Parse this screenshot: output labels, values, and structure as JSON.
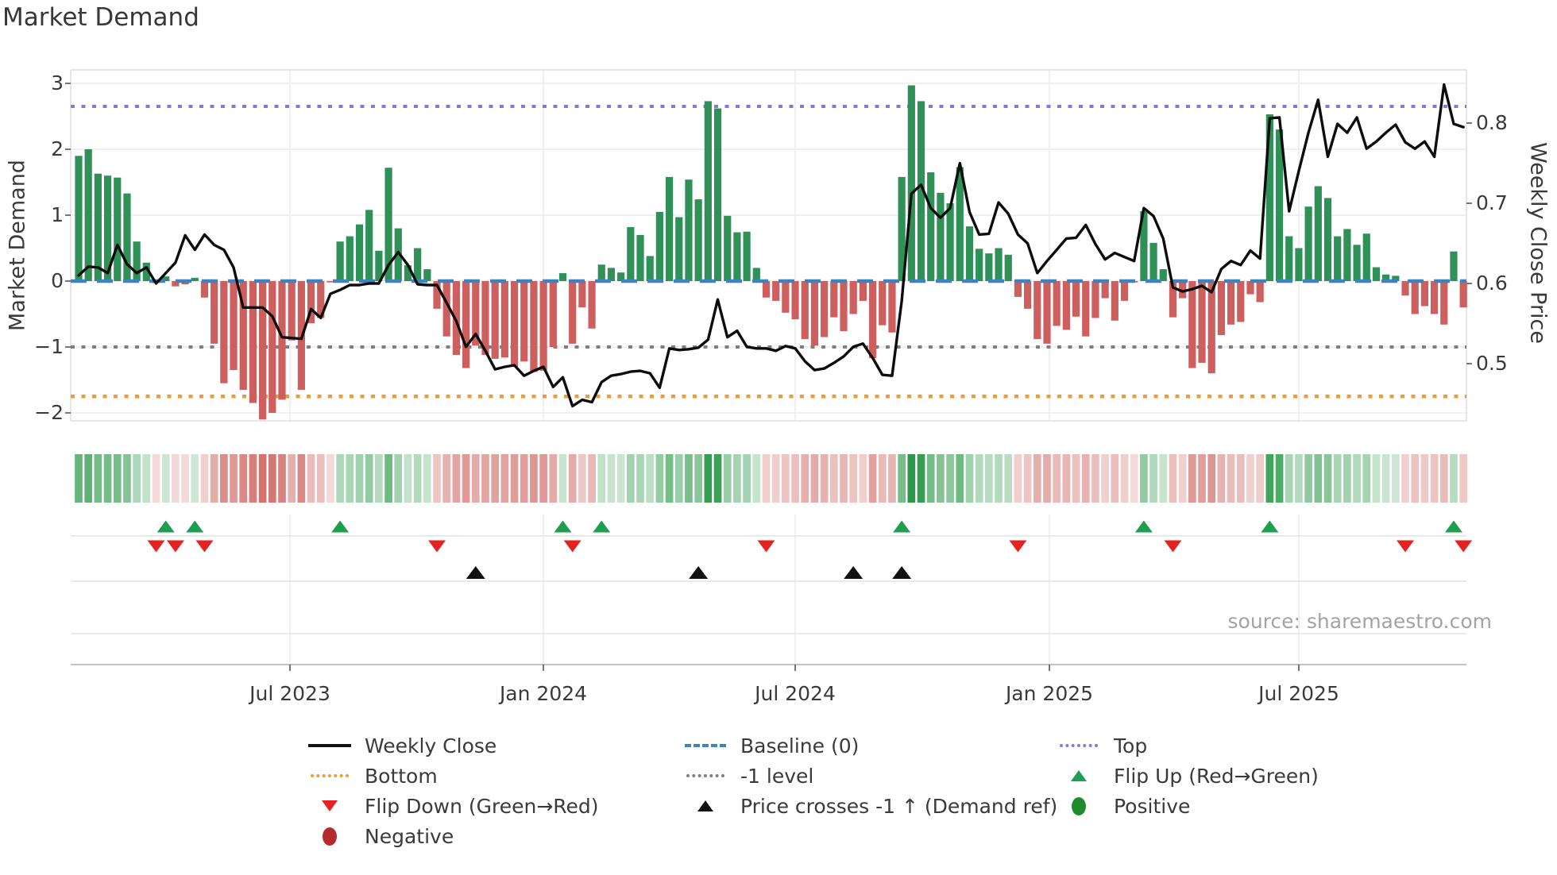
{
  "title": "Market Demand",
  "source_text": "source: sharemaestro.com",
  "axes": {
    "left_label": "Market Demand",
    "right_label": "Weekly Close Price",
    "left_tick_labels": [
      "3",
      "2",
      "1",
      "0",
      "−1",
      "−2"
    ],
    "right_tick_labels": [
      "0.8",
      "0.7",
      "0.6",
      "0.5"
    ],
    "x_tick_labels": [
      "Jul 2023",
      "Jan 2024",
      "Jul 2024",
      "Jan 2025",
      "Jul 2025"
    ]
  },
  "legend": {
    "columns": [
      {
        "items": [
          {
            "icon": "black-line",
            "label": "Weekly Close"
          },
          {
            "icon": "orange-dotted-line",
            "label": "Bottom"
          },
          {
            "icon": "red-down-triangle",
            "label": "Flip Down (Green→Red)"
          },
          {
            "icon": "dark-red-circle",
            "label": "Negative"
          }
        ]
      },
      {
        "items": [
          {
            "icon": "blue-dashed-line",
            "label": "Baseline (0)"
          },
          {
            "icon": "gray-dotted-line",
            "label": "-1 level"
          },
          {
            "icon": "black-up-triangle",
            "label": "Price crosses -1 ↑ (Demand ref)"
          }
        ]
      },
      {
        "items": [
          {
            "icon": "purple-dotted-line",
            "label": "Top"
          },
          {
            "icon": "green-up-triangle",
            "label": "Flip Up (Red→Green)"
          },
          {
            "icon": "green-circle",
            "label": "Positive"
          }
        ]
      }
    ]
  },
  "colors": {
    "bar_positive": "#2f9058",
    "bar_negative": "#cd5f5f",
    "price_line": "#0d0d0d",
    "baseline": "#3d84bf",
    "top_line": "#8478dd",
    "bottom_line": "#ef9b30",
    "neg1_line": "#7f7f7f",
    "flip_up_marker": "#1e9e4f",
    "flip_down_marker": "#e42320",
    "price_cross_marker": "#111111",
    "positive_dot": "#1e8c2e",
    "negative_dot": "#b32b2b",
    "grid": "#ececec",
    "spine": "#dedede"
  },
  "chart_data": {
    "type": "bar+line",
    "title": "Market Demand",
    "x_unit": "week",
    "x_tick_labels": [
      "Jul 2023",
      "Jan 2024",
      "Jul 2024",
      "Jan 2025",
      "Jul 2025"
    ],
    "left_axis": {
      "label": "Market Demand",
      "ticks": [
        3,
        2,
        1,
        0,
        -1,
        -2
      ],
      "ylim": [
        -2.4,
        3.25
      ]
    },
    "right_axis": {
      "label": "Weekly Close Price",
      "ticks": [
        0.8,
        0.7,
        0.6,
        0.5
      ]
    },
    "ref_lines": {
      "baseline": 0,
      "neg1_level": -1,
      "top": 2.65,
      "bottom": -1.75
    },
    "heatmap_source": "demand_values",
    "legend_position": "below chart, 3 columns",
    "series": [
      {
        "name": "Market Demand",
        "type": "bar",
        "values": [
          1.9,
          2.0,
          1.63,
          1.6,
          1.57,
          1.33,
          0.6,
          0.28,
          -0.03,
          0.07,
          -0.08,
          -0.05,
          0.05,
          -0.25,
          -0.95,
          -1.55,
          -1.35,
          -1.65,
          -1.85,
          -2.1,
          -2.0,
          -1.8,
          -0.9,
          -1.65,
          -0.64,
          -0.56,
          -0.02,
          0.6,
          0.68,
          0.86,
          1.08,
          0.46,
          1.72,
          0.8,
          0.24,
          0.5,
          0.18,
          -0.42,
          -0.84,
          -1.12,
          -1.32,
          -0.98,
          -1.12,
          -1.18,
          -1.16,
          -1.3,
          -1.22,
          -1.38,
          -1.36,
          -1.0,
          0.12,
          -0.95,
          -0.4,
          -0.72,
          0.25,
          0.2,
          0.13,
          0.82,
          0.7,
          0.38,
          1.05,
          1.58,
          0.97,
          1.54,
          1.24,
          2.73,
          2.62,
          0.99,
          0.74,
          0.75,
          0.2,
          -0.25,
          -0.3,
          -0.48,
          -0.58,
          -0.88,
          -0.98,
          -0.85,
          -0.55,
          -0.76,
          -0.5,
          -0.3,
          -1.17,
          -0.67,
          -0.78,
          1.58,
          2.97,
          2.73,
          1.65,
          1.34,
          1.18,
          1.73,
          0.83,
          0.49,
          0.42,
          0.5,
          0.4,
          -0.24,
          -0.42,
          -0.88,
          -0.95,
          -0.68,
          -0.74,
          -0.54,
          -0.84,
          -0.56,
          -0.26,
          -0.6,
          -0.3,
          -0.02,
          1.06,
          0.58,
          0.18,
          -0.55,
          -0.26,
          -1.32,
          -1.24,
          -1.4,
          -0.82,
          -0.66,
          -0.62,
          -0.2,
          -0.32,
          2.53,
          2.3,
          0.68,
          0.5,
          1.13,
          1.44,
          1.26,
          0.68,
          0.79,
          0.55,
          0.72,
          0.21,
          0.1,
          0.08,
          -0.22,
          -0.5,
          -0.38,
          -0.5,
          -0.66,
          0.45,
          -0.4
        ]
      },
      {
        "name": "Weekly Close",
        "type": "line",
        "values": [
          0.61,
          0.621,
          0.62,
          0.613,
          0.648,
          0.624,
          0.613,
          0.62,
          0.6,
          0.613,
          0.626,
          0.66,
          0.642,
          0.661,
          0.648,
          0.642,
          0.62,
          0.57,
          0.57,
          0.57,
          0.559,
          0.533,
          0.532,
          0.531,
          0.568,
          0.557,
          0.587,
          0.592,
          0.598,
          0.598,
          0.6,
          0.6,
          0.623,
          0.639,
          0.623,
          0.599,
          0.598,
          0.598,
          0.576,
          0.553,
          0.521,
          0.537,
          0.516,
          0.493,
          0.496,
          0.498,
          0.485,
          0.491,
          0.496,
          0.471,
          0.483,
          0.447,
          0.455,
          0.452,
          0.477,
          0.485,
          0.487,
          0.49,
          0.491,
          0.488,
          0.47,
          0.519,
          0.517,
          0.518,
          0.52,
          0.53,
          0.58,
          0.533,
          0.541,
          0.521,
          0.519,
          0.519,
          0.516,
          0.522,
          0.519,
          0.503,
          0.492,
          0.494,
          0.501,
          0.509,
          0.521,
          0.525,
          0.507,
          0.486,
          0.485,
          0.578,
          0.712,
          0.723,
          0.694,
          0.682,
          0.694,
          0.75,
          0.689,
          0.661,
          0.662,
          0.701,
          0.687,
          0.661,
          0.65,
          0.613,
          0.628,
          0.642,
          0.656,
          0.657,
          0.673,
          0.649,
          0.63,
          0.638,
          0.633,
          0.628,
          0.694,
          0.684,
          0.656,
          0.595,
          0.59,
          0.593,
          0.597,
          0.589,
          0.618,
          0.628,
          0.623,
          0.641,
          0.631,
          0.806,
          0.807,
          0.69,
          0.74,
          0.788,
          0.829,
          0.758,
          0.799,
          0.788,
          0.807,
          0.768,
          0.777,
          0.788,
          0.798,
          0.776,
          0.768,
          0.777,
          0.758,
          0.848,
          0.799,
          0.795
        ]
      }
    ],
    "markers": {
      "flip_up_weeks": [
        9,
        12,
        27,
        50,
        54,
        85,
        110,
        123,
        142
      ],
      "flip_down_weeks": [
        8,
        10,
        13,
        37,
        51,
        71,
        97,
        113,
        137,
        143
      ],
      "price_cross_weeks": [
        41,
        64,
        80,
        85
      ]
    }
  }
}
